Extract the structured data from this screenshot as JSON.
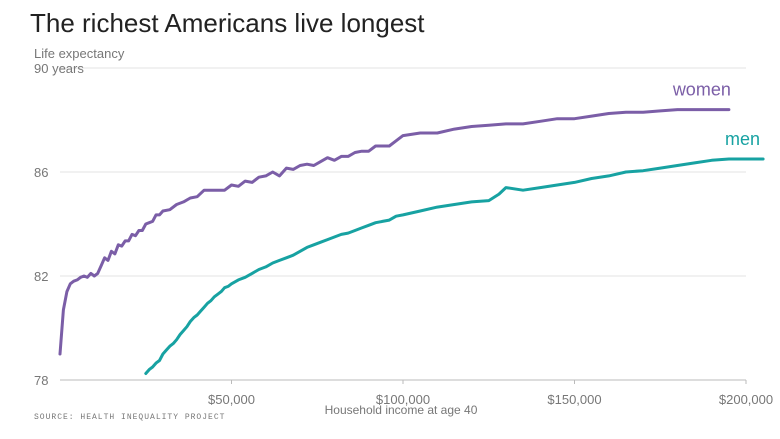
{
  "chart_data": {
    "type": "line",
    "title": "The richest Americans live longest",
    "ylabel": "Life expectancy",
    "ylabel_top_tick": "90 years",
    "xlabel": "Household income at age 40",
    "source": "SOURCE: HEALTH INEQUALITY PROJECT",
    "xlim": [
      0,
      200000
    ],
    "ylim": [
      78,
      90
    ],
    "x_ticks": [
      {
        "value": 50000,
        "label": "$50,000"
      },
      {
        "value": 100000,
        "label": "$100,000"
      },
      {
        "value": 150000,
        "label": "$150,000"
      },
      {
        "value": 200000,
        "label": "$200,000"
      }
    ],
    "y_ticks": [
      {
        "value": 78,
        "label": "78"
      },
      {
        "value": 82,
        "label": "82"
      },
      {
        "value": 86,
        "label": "86"
      }
    ],
    "grid": true,
    "series": [
      {
        "name": "women",
        "color": "#7b5ea7",
        "x": [
          0,
          1000,
          2000,
          3000,
          4000,
          5000,
          6000,
          7000,
          8000,
          9000,
          10000,
          11000,
          12000,
          13000,
          14000,
          15000,
          16000,
          17000,
          18000,
          19000,
          20000,
          21000,
          22000,
          23000,
          24000,
          25000,
          26000,
          27000,
          28000,
          29000,
          30000,
          32000,
          34000,
          36000,
          38000,
          40000,
          42000,
          44000,
          46000,
          48000,
          50000,
          52000,
          54000,
          56000,
          58000,
          60000,
          62000,
          64000,
          66000,
          68000,
          70000,
          72000,
          74000,
          76000,
          78000,
          80000,
          82000,
          84000,
          86000,
          88000,
          90000,
          92000,
          94000,
          96000,
          98000,
          100000,
          105000,
          110000,
          115000,
          120000,
          125000,
          130000,
          135000,
          140000,
          145000,
          150000,
          155000,
          160000,
          165000,
          170000,
          175000,
          180000,
          185000,
          190000,
          195000
        ],
        "values": [
          79.0,
          80.7,
          81.4,
          81.7,
          81.8,
          81.85,
          81.95,
          82.0,
          81.95,
          82.1,
          82.0,
          82.1,
          82.4,
          82.7,
          82.6,
          82.95,
          82.85,
          83.2,
          83.15,
          83.35,
          83.35,
          83.6,
          83.55,
          83.75,
          83.75,
          84.0,
          84.05,
          84.1,
          84.35,
          84.35,
          84.5,
          84.55,
          84.75,
          84.85,
          85.0,
          85.05,
          85.3,
          85.3,
          85.3,
          85.3,
          85.5,
          85.45,
          85.65,
          85.6,
          85.8,
          85.85,
          86.0,
          85.85,
          86.15,
          86.1,
          86.25,
          86.3,
          86.25,
          86.4,
          86.55,
          86.45,
          86.6,
          86.6,
          86.75,
          86.8,
          86.8,
          87.0,
          87.0,
          87.0,
          87.2,
          87.4,
          87.5,
          87.5,
          87.65,
          87.75,
          87.8,
          87.85,
          87.85,
          87.95,
          88.05,
          88.05,
          88.15,
          88.25,
          88.3,
          88.3,
          88.35,
          88.4,
          88.4,
          88.4,
          88.4
        ]
      },
      {
        "name": "men",
        "color": "#17a2a2",
        "x": [
          25000,
          26000,
          27000,
          28000,
          29000,
          30000,
          31000,
          32000,
          33000,
          34000,
          35000,
          36000,
          37000,
          38000,
          39000,
          40000,
          41000,
          42000,
          43000,
          44000,
          45000,
          46000,
          47000,
          48000,
          49000,
          50000,
          52000,
          54000,
          56000,
          58000,
          60000,
          62000,
          64000,
          66000,
          68000,
          70000,
          72000,
          74000,
          76000,
          78000,
          80000,
          82000,
          84000,
          86000,
          88000,
          90000,
          92000,
          94000,
          96000,
          98000,
          100000,
          105000,
          110000,
          115000,
          120000,
          125000,
          128000,
          130000,
          135000,
          140000,
          145000,
          150000,
          155000,
          160000,
          165000,
          170000,
          175000,
          180000,
          185000,
          190000,
          195000,
          200000,
          205000
        ],
        "values": [
          78.25,
          78.4,
          78.5,
          78.65,
          78.75,
          79.0,
          79.15,
          79.3,
          79.4,
          79.55,
          79.75,
          79.9,
          80.05,
          80.25,
          80.4,
          80.5,
          80.65,
          80.8,
          80.95,
          81.05,
          81.2,
          81.3,
          81.4,
          81.55,
          81.6,
          81.7,
          81.85,
          81.95,
          82.1,
          82.25,
          82.35,
          82.5,
          82.6,
          82.7,
          82.8,
          82.95,
          83.1,
          83.2,
          83.3,
          83.4,
          83.5,
          83.6,
          83.65,
          83.75,
          83.85,
          83.95,
          84.05,
          84.1,
          84.15,
          84.3,
          84.35,
          84.5,
          84.65,
          84.75,
          84.85,
          84.9,
          85.15,
          85.4,
          85.3,
          85.4,
          85.5,
          85.6,
          85.75,
          85.85,
          86.0,
          86.05,
          86.15,
          86.25,
          86.35,
          86.45,
          86.5,
          86.5,
          86.5
        ]
      }
    ]
  }
}
